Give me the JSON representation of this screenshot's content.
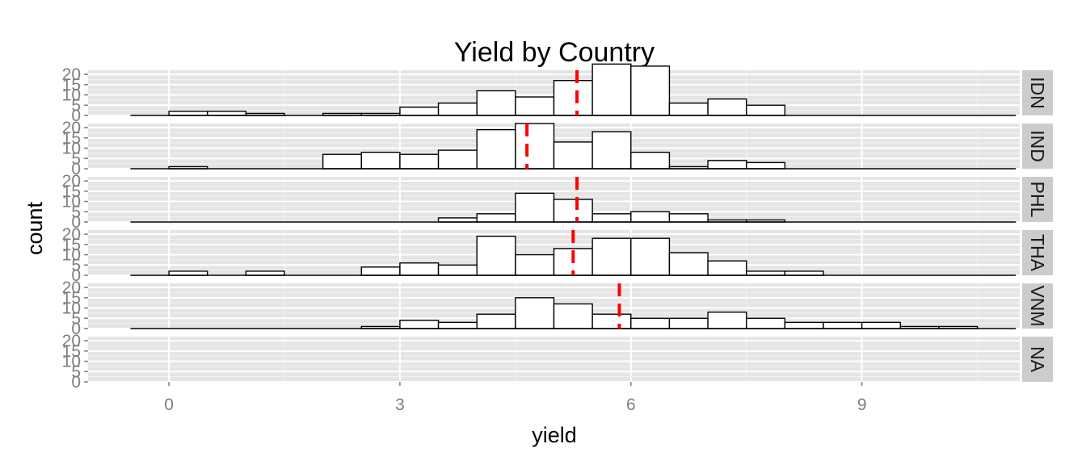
{
  "chart_data": {
    "type": "bar",
    "subtype": "faceted-histogram",
    "title": "Yield by Country",
    "xlabel": "yield",
    "ylabel": "count",
    "xlim": [
      -1.05,
      11.05
    ],
    "ylim": [
      0,
      22
    ],
    "x_ticks": [
      0,
      3,
      6,
      9
    ],
    "y_ticks": [
      0,
      5,
      10,
      15,
      20
    ],
    "bin_width": 0.5,
    "bin_starts": [
      -0.5,
      0,
      0.5,
      1,
      1.5,
      2,
      2.5,
      3,
      3.5,
      4,
      4.5,
      5,
      5.5,
      6,
      6.5,
      7,
      7.5,
      8,
      8.5,
      9,
      9.5,
      10,
      10.5
    ],
    "grid": true,
    "mean_line_color": "#ff0000",
    "facets": [
      {
        "label": "IDN",
        "mean": 5.3,
        "counts": [
          0,
          2,
          2,
          1,
          0,
          1,
          1,
          4,
          6,
          12,
          9,
          17,
          25,
          24,
          6,
          8,
          5,
          0,
          0,
          0,
          0,
          0,
          0
        ]
      },
      {
        "label": "IND",
        "mean": 4.65,
        "counts": [
          0,
          1,
          0,
          0,
          0,
          7,
          8,
          7,
          9,
          19,
          22,
          13,
          18,
          8,
          1,
          4,
          3,
          0,
          0,
          0,
          0,
          0,
          0
        ]
      },
      {
        "label": "PHL",
        "mean": 5.3,
        "counts": [
          0,
          0,
          0,
          0,
          0,
          0,
          0,
          0,
          2,
          4,
          14,
          11,
          4,
          5,
          4,
          1,
          1,
          0,
          0,
          0,
          0,
          0,
          0
        ]
      },
      {
        "label": "THA",
        "mean": 5.25,
        "counts": [
          0,
          2,
          0,
          2,
          0,
          0,
          4,
          6,
          5,
          19,
          10,
          13,
          18,
          18,
          11,
          7,
          2,
          2,
          0,
          0,
          0,
          0,
          0
        ]
      },
      {
        "label": "VNM",
        "mean": 5.85,
        "counts": [
          0,
          0,
          0,
          0,
          0,
          0,
          1,
          4,
          3,
          7,
          15,
          12,
          7,
          5,
          5,
          8,
          5,
          3,
          3,
          3,
          1,
          1,
          0
        ]
      },
      {
        "label": "NA",
        "mean": null,
        "counts": []
      }
    ]
  }
}
